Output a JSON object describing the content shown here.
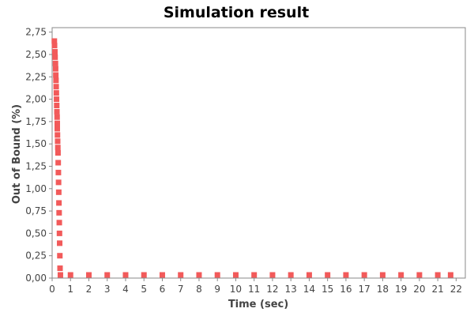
{
  "chart_data": {
    "type": "scatter",
    "title": "Simulation result",
    "xlabel": "Time (sec)",
    "ylabel": "Out of Bound (%)",
    "xlim": [
      0,
      22.5
    ],
    "ylim": [
      0,
      2.8
    ],
    "x_ticks": [
      "0",
      "1",
      "2",
      "3",
      "4",
      "5",
      "6",
      "7",
      "8",
      "9",
      "10",
      "11",
      "12",
      "13",
      "14",
      "15",
      "16",
      "17",
      "18",
      "19",
      "20",
      "21",
      "22"
    ],
    "y_ticks": [
      "0,00",
      "0,25",
      "0,50",
      "0,75",
      "1,00",
      "1,25",
      "1,50",
      "1,75",
      "2,00",
      "2,25",
      "2,50",
      "2,75"
    ],
    "grid": false,
    "series": [
      {
        "color": "#f25a5a",
        "marker": "square",
        "points": [
          [
            0.12,
            2.65
          ],
          [
            0.13,
            2.6
          ],
          [
            0.15,
            2.53
          ],
          [
            0.16,
            2.47
          ],
          [
            0.18,
            2.4
          ],
          [
            0.19,
            2.34
          ],
          [
            0.2,
            2.27
          ],
          [
            0.21,
            2.21
          ],
          [
            0.22,
            2.14
          ],
          [
            0.23,
            2.07
          ],
          [
            0.24,
            2.0
          ],
          [
            0.25,
            1.93
          ],
          [
            0.26,
            1.86
          ],
          [
            0.27,
            1.8
          ],
          [
            0.28,
            1.73
          ],
          [
            0.28,
            1.67
          ],
          [
            0.29,
            1.6
          ],
          [
            0.3,
            1.53
          ],
          [
            0.31,
            1.46
          ],
          [
            0.32,
            1.4
          ],
          [
            0.33,
            1.29
          ],
          [
            0.34,
            1.18
          ],
          [
            0.35,
            1.07
          ],
          [
            0.36,
            0.96
          ],
          [
            0.37,
            0.84
          ],
          [
            0.38,
            0.73
          ],
          [
            0.39,
            0.62
          ],
          [
            0.4,
            0.5
          ],
          [
            0.41,
            0.39
          ],
          [
            0.42,
            0.25
          ],
          [
            0.43,
            0.11
          ],
          [
            0.45,
            0.0
          ],
          [
            1,
            0.0
          ],
          [
            2,
            0.0
          ],
          [
            3,
            0.0
          ],
          [
            4,
            0.0
          ],
          [
            5,
            0.0
          ],
          [
            6,
            0.0
          ],
          [
            7,
            0.0
          ],
          [
            8,
            0.0
          ],
          [
            9,
            0.0
          ],
          [
            10,
            0.0
          ],
          [
            11,
            0.0
          ],
          [
            12,
            0.0
          ],
          [
            13,
            0.0
          ],
          [
            14,
            0.0
          ],
          [
            15,
            0.0
          ],
          [
            16,
            0.0
          ],
          [
            17,
            0.0
          ],
          [
            18,
            0.0
          ],
          [
            19,
            0.0
          ],
          [
            20,
            0.0
          ],
          [
            21,
            0.0
          ],
          [
            21.7,
            0.0
          ]
        ]
      }
    ]
  }
}
